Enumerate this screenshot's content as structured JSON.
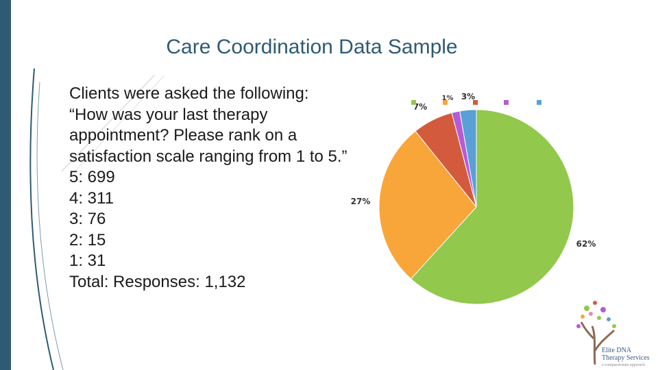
{
  "slide": {
    "title": "Care Coordination Data Sample",
    "lines": [
      "Clients were asked the following:",
      "“How was your last therapy appointment? Please rank on a satisfaction scale ranging from 1 to 5.”",
      "5: 699",
      "4: 311",
      "3: 76",
      "2: 15",
      "1: 31",
      "Total: Responses: 1,132"
    ]
  },
  "logo": {
    "name_line1": "Elite DNA",
    "name_line2": "Therapy Services",
    "tagline": "a compassionate approach"
  },
  "colors": {
    "sidebar": "#2e5a74",
    "title": "#2e5a74"
  },
  "chart_data": {
    "type": "pie",
    "start": "12 o'clock, clockwise",
    "slices": [
      {
        "value": 699,
        "label": "62%",
        "color": "#92c84c"
      },
      {
        "value": 311,
        "label": "27%",
        "color": "#f8a63a"
      },
      {
        "value": 76,
        "label": "7%",
        "color": "#d35a3c"
      },
      {
        "value": 15,
        "label": "1%",
        "color": "#b45bd6"
      },
      {
        "value": 31,
        "label": "3%",
        "color": "#5a9fd6"
      }
    ],
    "legend_markers": [
      {
        "color": "#92c84c"
      },
      {
        "color": "#f8a63a"
      },
      {
        "color": "#d35a3c"
      },
      {
        "color": "#b45bd6"
      },
      {
        "color": "#5a9fd6"
      }
    ],
    "legend_placement": "top"
  }
}
